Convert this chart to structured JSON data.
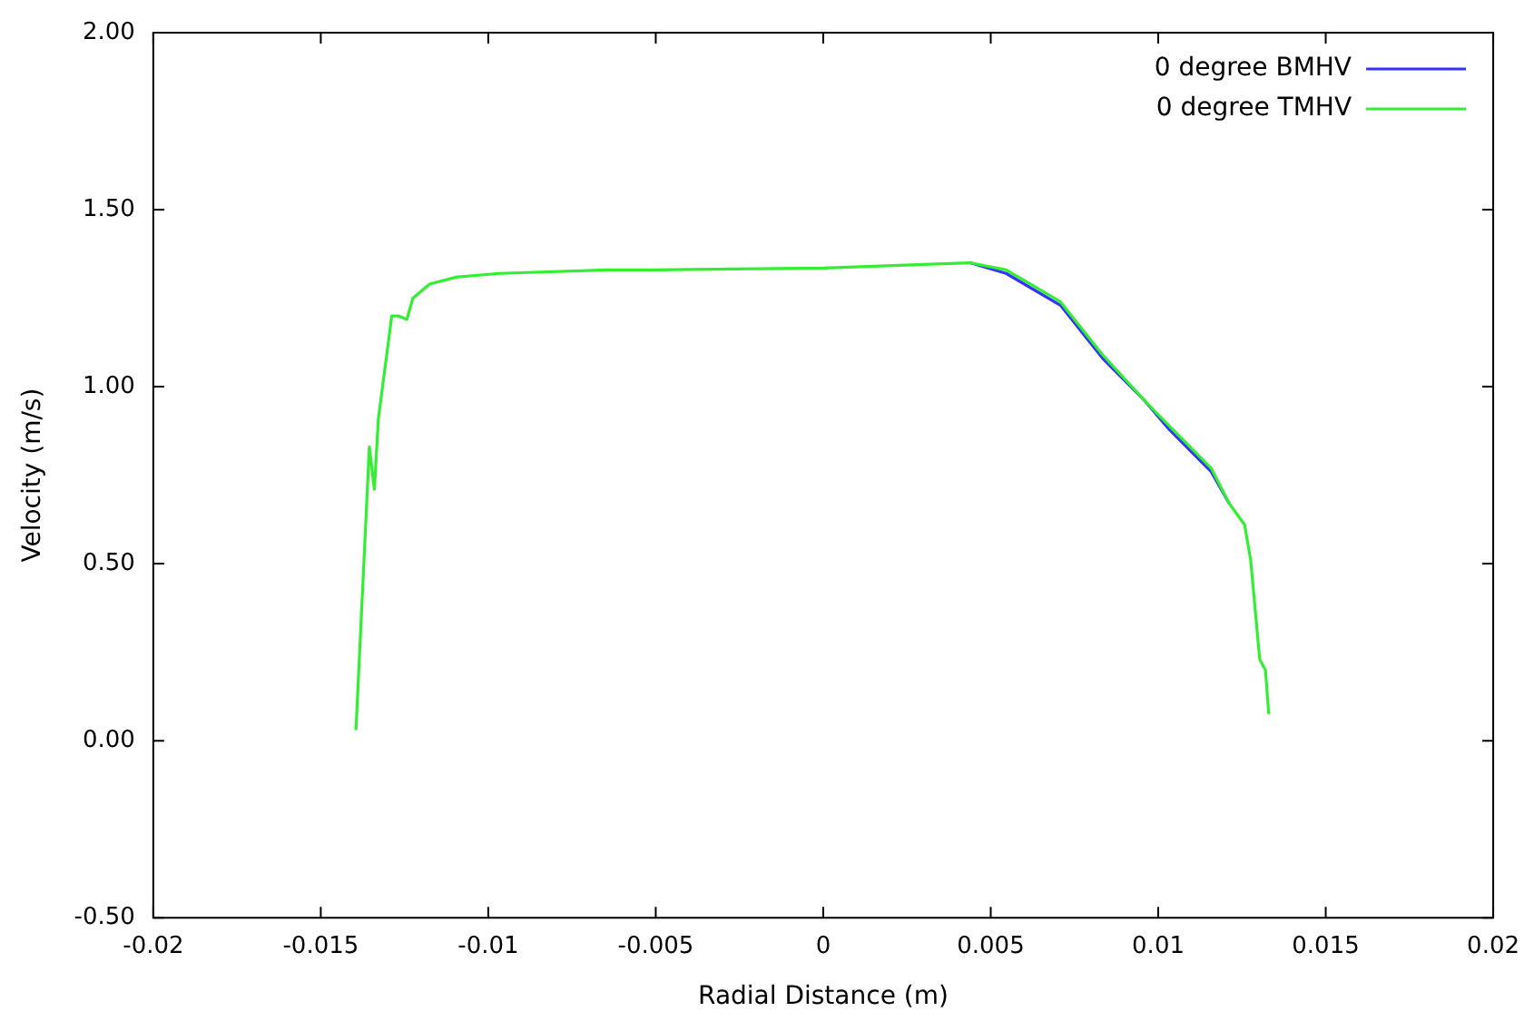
{
  "chart_data": {
    "type": "line",
    "xlabel": "Radial Distance (m)",
    "ylabel": "Velocity (m/s)",
    "xlim": [
      -0.02,
      0.02
    ],
    "xticks": [
      -0.02,
      -0.015,
      -0.01,
      -0.005,
      0,
      0.005,
      0.01,
      0.015,
      0.02
    ],
    "ylim": [
      -0.5,
      2
    ],
    "yticks": [
      {
        "value": -0.5,
        "label": "-0.50"
      },
      {
        "value": 0,
        "label": "0.00"
      },
      {
        "value": 0.5,
        "label": "0.50"
      },
      {
        "value": 1,
        "label": "1.00"
      },
      {
        "value": 1.5,
        "label": "1.50"
      },
      {
        "value": 2,
        "label": "2.00"
      }
    ],
    "legend": "top right",
    "grid": false,
    "marker": "none",
    "line_style": "solid",
    "series": [
      {
        "name": "0 degree BMHV",
        "color": "#3333ff",
        "x": [
          0.00438,
          0.00546,
          0.00708,
          0.00834,
          0.0096,
          0.01032,
          0.01158,
          0.01212
        ],
        "values": [
          1.35,
          1.32,
          1.23,
          1.08,
          0.96,
          0.88,
          0.76,
          0.67
        ]
      },
      {
        "name": "0 degree TMHV",
        "color": "#33ee33",
        "x": [
          -0.01395,
          -0.01355,
          -0.0134,
          -0.01328,
          -0.01288,
          -0.0127,
          -0.01243,
          -0.01225,
          -0.01175,
          -0.01093,
          -0.00967,
          -0.00643,
          -0.005,
          0,
          0.00438,
          0.00546,
          0.00708,
          0.00834,
          0.0096,
          0.01032,
          0.01158,
          0.01212,
          0.01258,
          0.01276,
          0.01303,
          0.0132,
          0.0133
        ],
        "values": [
          0.03,
          0.83,
          0.71,
          0.91,
          1.2,
          1.2,
          1.19,
          1.25,
          1.29,
          1.31,
          1.32,
          1.33,
          1.33,
          1.335,
          1.35,
          1.33,
          1.24,
          1.09,
          0.96,
          0.89,
          0.77,
          0.67,
          0.61,
          0.51,
          0.23,
          0.2,
          0.075
        ]
      }
    ]
  }
}
